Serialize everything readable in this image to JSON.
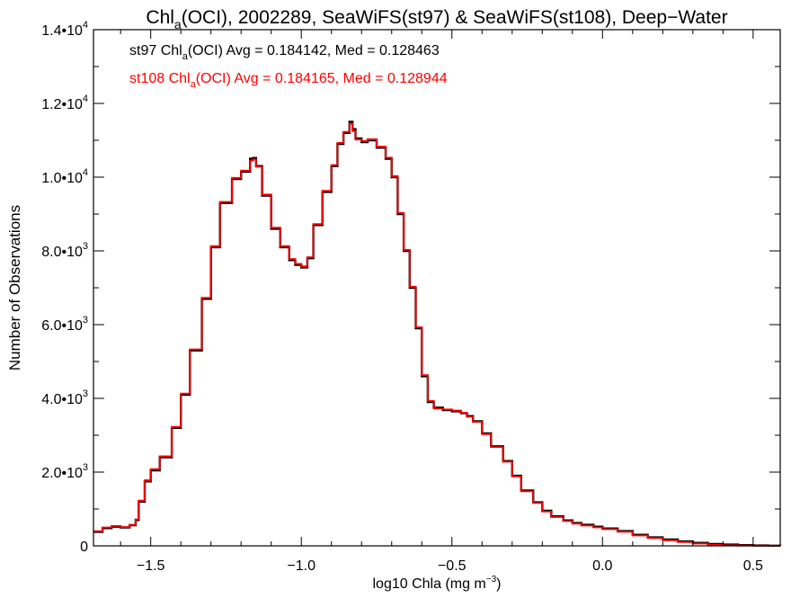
{
  "chart_data": {
    "type": "line",
    "title": {
      "pre": "Chl",
      "sub": "a",
      "post": "(OCI), 2002289, SeaWiFS(st97) & SeaWiFS(st108), Deep−Water"
    },
    "xlabel": {
      "pre": "log10 Chla (mg m",
      "sup": "−3",
      "post": ")"
    },
    "ylabel": "Number of Observations",
    "xlim": [
      -1.69,
      0.59
    ],
    "ylim": [
      0,
      14000
    ],
    "x_ticks": [
      {
        "value": -1.5,
        "label": "−1.5"
      },
      {
        "value": -1.0,
        "label": "−1.0"
      },
      {
        "value": -0.5,
        "label": "−0.5"
      },
      {
        "value": 0.0,
        "label": "0.0"
      },
      {
        "value": 0.5,
        "label": "0.5"
      }
    ],
    "y_ticks": [
      {
        "value": 0,
        "base": "0",
        "exp": ""
      },
      {
        "value": 2000,
        "base": "2.0•10",
        "exp": "3"
      },
      {
        "value": 4000,
        "base": "4.0•10",
        "exp": "3"
      },
      {
        "value": 6000,
        "base": "6.0•10",
        "exp": "3"
      },
      {
        "value": 8000,
        "base": "8.0•10",
        "exp": "3"
      },
      {
        "value": 10000,
        "base": "1.0•10",
        "exp": "4"
      },
      {
        "value": 12000,
        "base": "1.2•10",
        "exp": "4"
      },
      {
        "value": 14000,
        "base": "1.4•10",
        "exp": "4"
      }
    ],
    "legend": [
      {
        "pre": "st97 Chl",
        "sub": "a",
        "post": "(OCI) Avg = 0.184142, Med = 0.128463",
        "color": "#000000"
      },
      {
        "pre": "st108 Chl",
        "sub": "a",
        "post": "(OCI) Avg = 0.184165, Med = 0.128944",
        "color": "#ff0000"
      }
    ],
    "series": [
      {
        "color": "#000000",
        "x": [
          -1.69,
          -1.66,
          -1.63,
          -1.6,
          -1.57,
          -1.55,
          -1.54,
          -1.52,
          -1.5,
          -1.47,
          -1.43,
          -1.4,
          -1.37,
          -1.33,
          -1.3,
          -1.27,
          -1.23,
          -1.2,
          -1.17,
          -1.16,
          -1.15,
          -1.13,
          -1.1,
          -1.07,
          -1.04,
          -1.02,
          -1.0,
          -0.98,
          -0.96,
          -0.93,
          -0.9,
          -0.88,
          -0.86,
          -0.84,
          -0.83,
          -0.82,
          -0.8,
          -0.78,
          -0.75,
          -0.72,
          -0.7,
          -0.68,
          -0.66,
          -0.64,
          -0.62,
          -0.6,
          -0.58,
          -0.56,
          -0.53,
          -0.5,
          -0.47,
          -0.45,
          -0.43,
          -0.4,
          -0.37,
          -0.33,
          -0.3,
          -0.27,
          -0.23,
          -0.2,
          -0.17,
          -0.13,
          -0.1,
          -0.07,
          -0.03,
          0.0,
          0.05,
          0.1,
          0.15,
          0.2,
          0.25,
          0.3,
          0.35,
          0.4,
          0.45,
          0.5,
          0.55,
          0.59
        ],
        "y": [
          380,
          480,
          520,
          500,
          560,
          700,
          1200,
          1750,
          2050,
          2400,
          3200,
          4100,
          5300,
          6700,
          8100,
          9300,
          9950,
          10150,
          10500,
          10520,
          10300,
          9500,
          8600,
          8100,
          7750,
          7620,
          7550,
          7800,
          8700,
          9600,
          10300,
          10900,
          11200,
          11500,
          11300,
          11050,
          10950,
          11000,
          10800,
          10500,
          10000,
          9000,
          8000,
          7000,
          5900,
          4600,
          3900,
          3750,
          3680,
          3650,
          3600,
          3520,
          3380,
          3050,
          2700,
          2300,
          1900,
          1500,
          1180,
          950,
          800,
          690,
          620,
          570,
          520,
          470,
          400,
          300,
          230,
          170,
          120,
          80,
          50,
          35,
          20,
          10,
          5,
          2
        ]
      },
      {
        "color": "#ff0000",
        "x": [
          -1.69,
          -1.66,
          -1.63,
          -1.6,
          -1.57,
          -1.55,
          -1.54,
          -1.52,
          -1.5,
          -1.47,
          -1.43,
          -1.4,
          -1.37,
          -1.33,
          -1.3,
          -1.27,
          -1.23,
          -1.2,
          -1.17,
          -1.16,
          -1.15,
          -1.13,
          -1.1,
          -1.07,
          -1.04,
          -1.02,
          -1.0,
          -0.98,
          -0.96,
          -0.93,
          -0.9,
          -0.88,
          -0.86,
          -0.84,
          -0.83,
          -0.82,
          -0.8,
          -0.78,
          -0.75,
          -0.72,
          -0.7,
          -0.68,
          -0.66,
          -0.64,
          -0.62,
          -0.6,
          -0.58,
          -0.56,
          -0.53,
          -0.5,
          -0.47,
          -0.45,
          -0.43,
          -0.4,
          -0.37,
          -0.33,
          -0.3,
          -0.27,
          -0.23,
          -0.2,
          -0.17,
          -0.13,
          -0.1,
          -0.07,
          -0.03,
          0.0,
          0.05,
          0.1,
          0.15,
          0.2,
          0.25,
          0.3,
          0.35,
          0.4,
          0.45,
          0.5,
          0.55,
          0.59
        ],
        "y": [
          400,
          500,
          540,
          510,
          570,
          720,
          1230,
          1780,
          2080,
          2430,
          3230,
          4130,
          5330,
          6730,
          8130,
          9330,
          9980,
          10180,
          10450,
          10480,
          10280,
          9530,
          8630,
          8130,
          7780,
          7650,
          7580,
          7830,
          8730,
          9630,
          10330,
          10930,
          11230,
          11450,
          11250,
          11020,
          10980,
          11030,
          10830,
          10530,
          10030,
          9030,
          8030,
          7030,
          5930,
          4630,
          3930,
          3720,
          3700,
          3670,
          3610,
          3500,
          3360,
          3030,
          2680,
          2280,
          1880,
          1480,
          1160,
          930,
          780,
          670,
          600,
          550,
          500,
          450,
          380,
          280,
          210,
          150,
          100,
          60,
          30,
          15,
          8,
          4,
          2,
          1
        ]
      }
    ],
    "grid": false
  }
}
